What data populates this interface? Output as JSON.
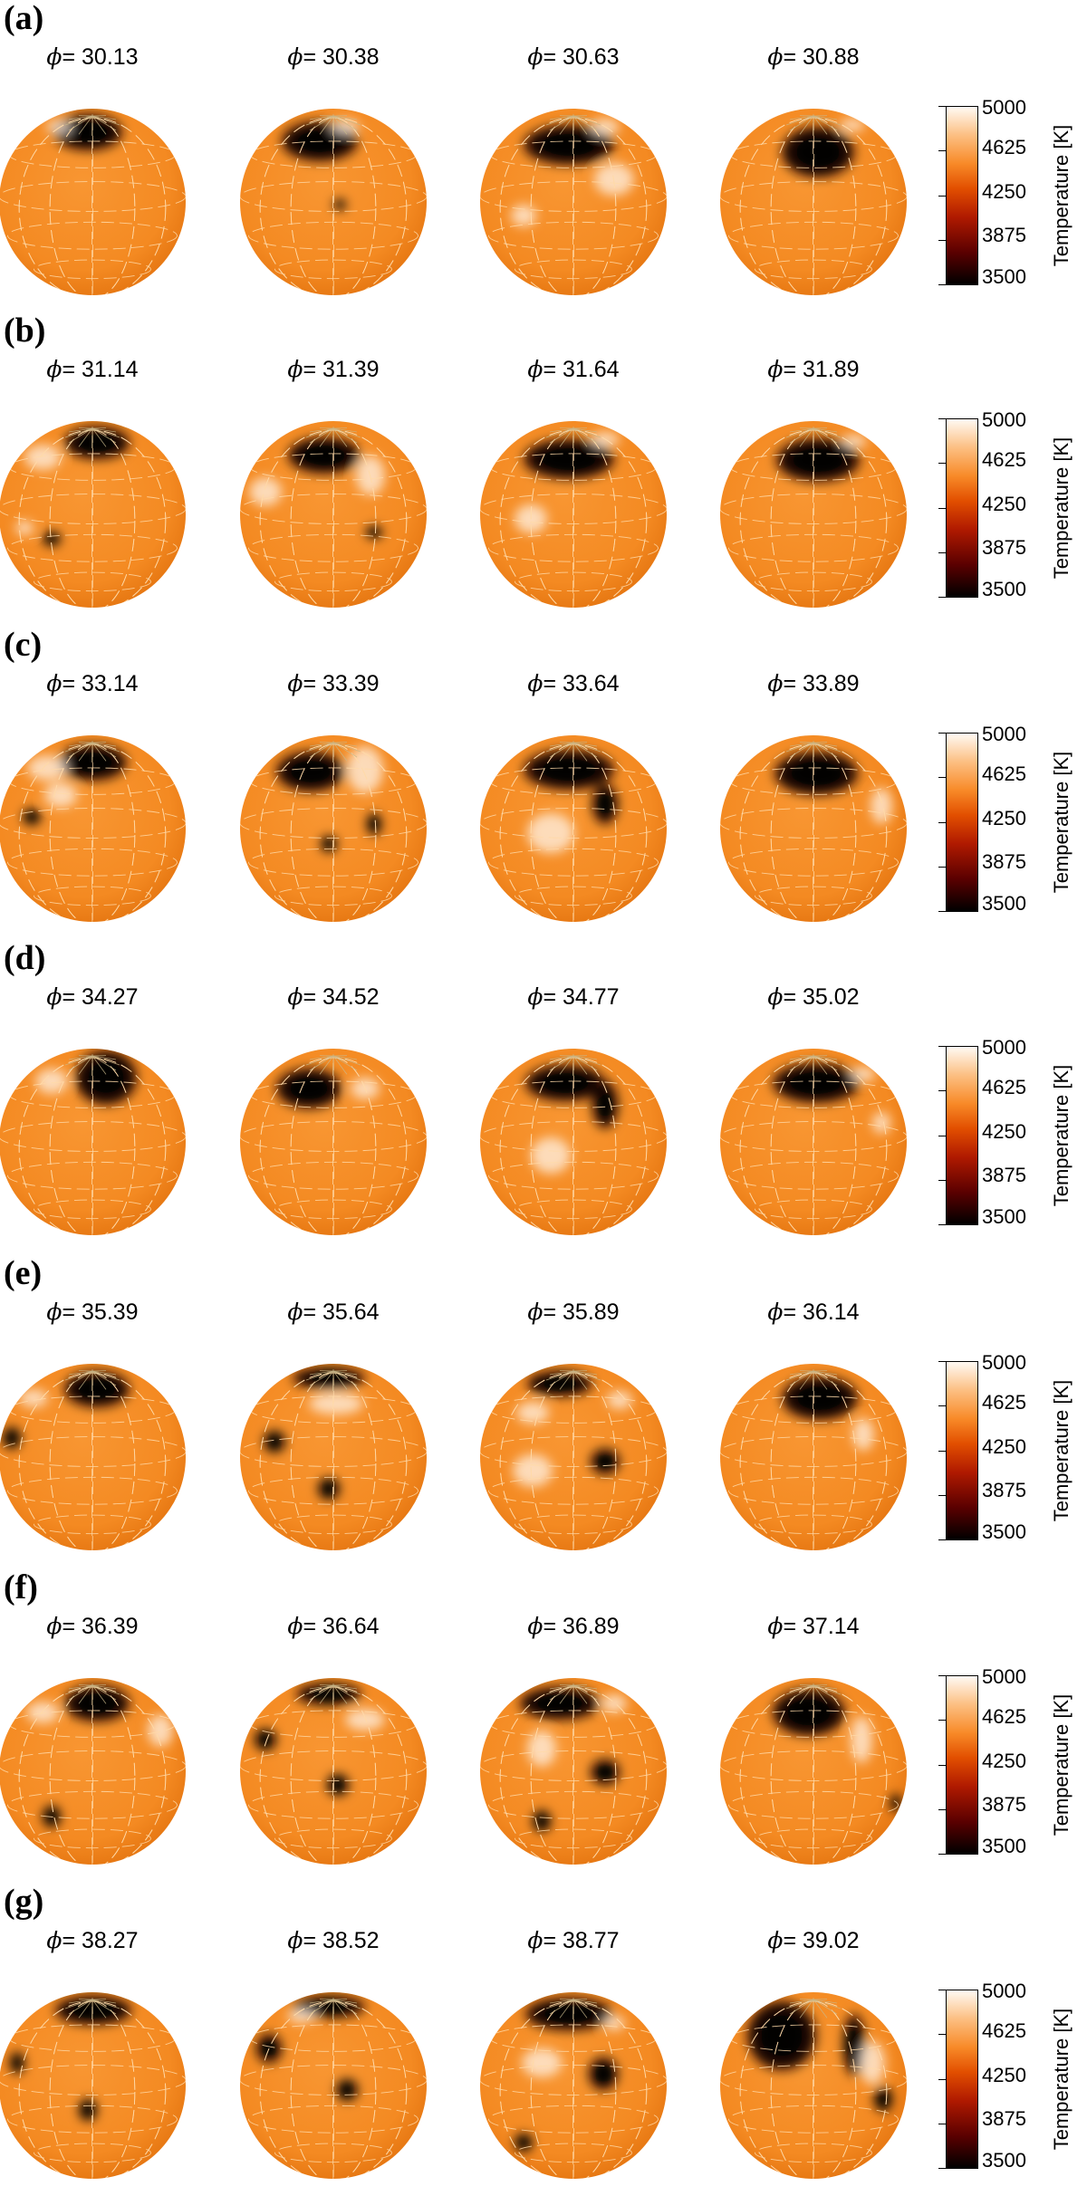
{
  "colors": {
    "surface": "#f48a22",
    "spot": "#000000",
    "bright": "#fff4e8"
  },
  "colorbar": {
    "title": "Temperature [K]",
    "ticks": [
      "5000",
      "4625",
      "4250",
      "3875",
      "3500"
    ],
    "min": 3500,
    "max": 5000
  },
  "panels": [
    {
      "label": "(a)",
      "phases": [
        "30.13",
        "30.38",
        "30.63",
        "30.88"
      ]
    },
    {
      "label": "(b)",
      "phases": [
        "31.14",
        "31.39",
        "31.64",
        "31.89"
      ]
    },
    {
      "label": "(c)",
      "phases": [
        "33.14",
        "33.39",
        "33.64",
        "33.89"
      ]
    },
    {
      "label": "(d)",
      "phases": [
        "34.27",
        "34.52",
        "34.77",
        "35.02"
      ]
    },
    {
      "label": "(e)",
      "phases": [
        "35.39",
        "35.64",
        "35.89",
        "36.14"
      ]
    },
    {
      "label": "(f)",
      "phases": [
        "36.39",
        "36.64",
        "36.89",
        "37.14"
      ]
    },
    {
      "label": "(g)",
      "phases": [
        "38.27",
        "38.52",
        "38.77",
        "39.02"
      ]
    }
  ]
}
